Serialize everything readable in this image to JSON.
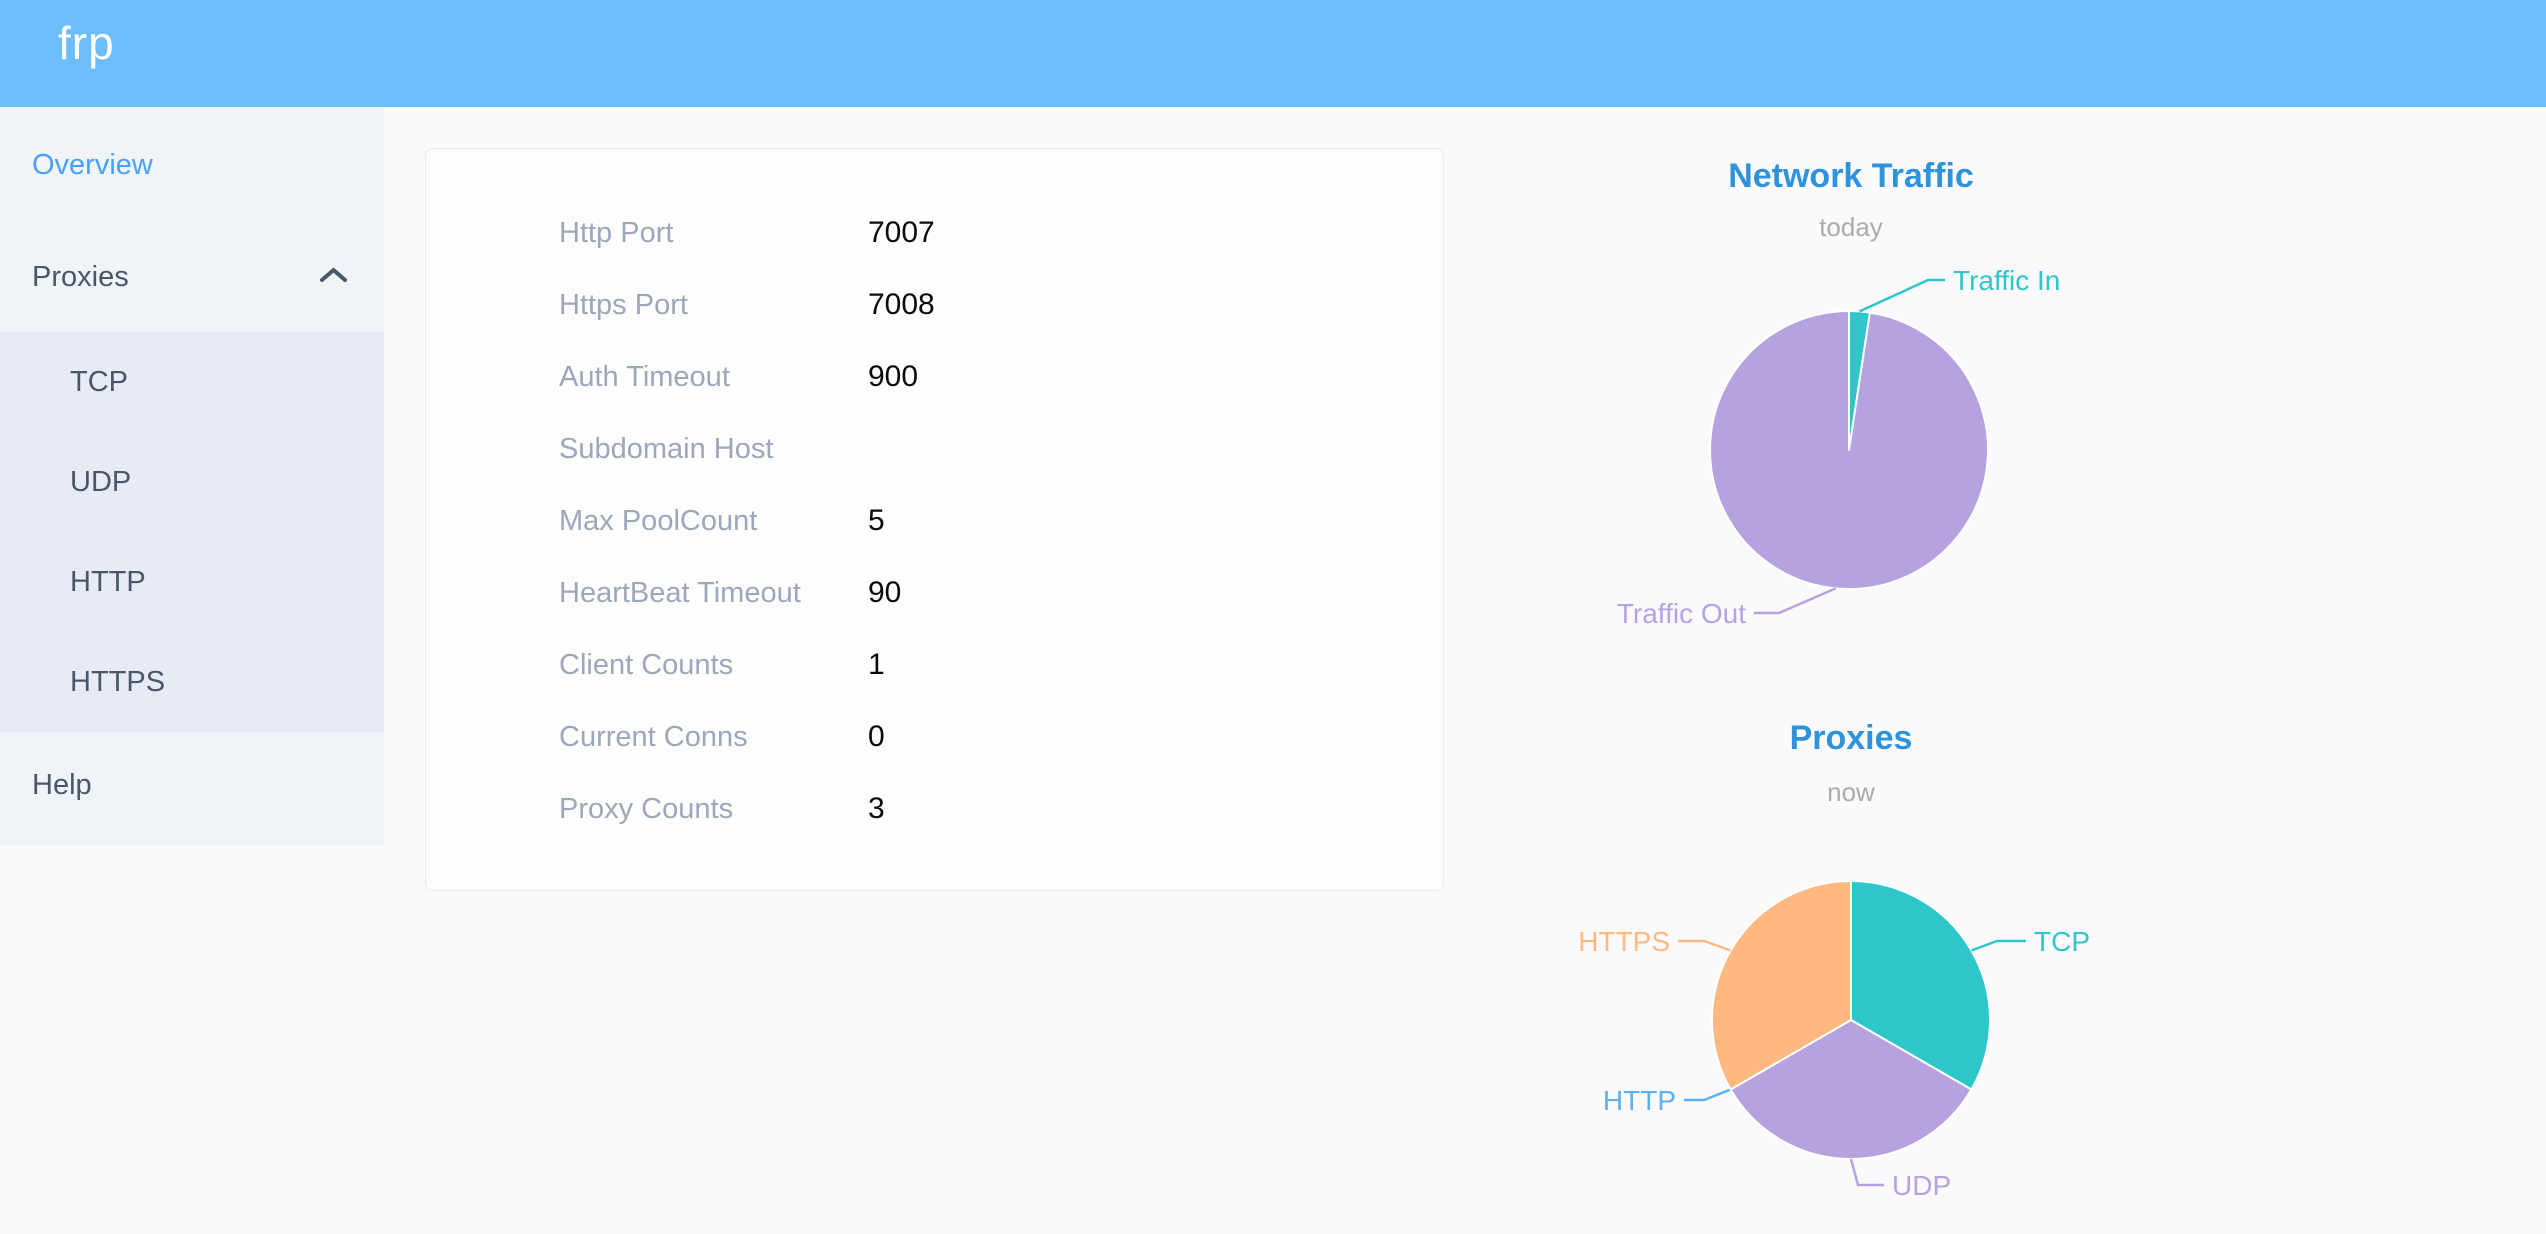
{
  "header": {
    "logo_text": "frp",
    "bg_color": "#6dbdfd"
  },
  "sidebar": {
    "overview_label": "Overview",
    "proxies_label": "Proxies",
    "help_label": "Help",
    "submenu": [
      "TCP",
      "UDP",
      "HTTP",
      "HTTPS"
    ],
    "active_item": "Overview",
    "active_color": "#4aa1f8",
    "text_color": "#48576a",
    "proxies_expanded": true
  },
  "server_info": {
    "rows": [
      {
        "label": "Http Port",
        "value": "7007"
      },
      {
        "label": "Https Port",
        "value": "7008"
      },
      {
        "label": "Auth Timeout",
        "value": "900"
      },
      {
        "label": "Subdomain Host",
        "value": ""
      },
      {
        "label": "Max PoolCount",
        "value": "5"
      },
      {
        "label": "HeartBeat Timeout",
        "value": "90"
      },
      {
        "label": "Client Counts",
        "value": "1"
      },
      {
        "label": "Current Conns",
        "value": "0"
      },
      {
        "label": "Proxy Counts",
        "value": "3"
      }
    ]
  },
  "chart_data": [
    {
      "type": "pie",
      "title": "Network Traffic",
      "subtitle": "today",
      "title_color": "#2e93da",
      "values_are_percent_estimates": true,
      "legend_position": "outside-labels-with-leader-lines",
      "series": [
        {
          "name": "Traffic In",
          "value": 2.4,
          "color": "#2ec7c9"
        },
        {
          "name": "Traffic Out",
          "value": 97.6,
          "color": "#b6a2de"
        }
      ]
    },
    {
      "type": "pie",
      "title": "Proxies",
      "subtitle": "now",
      "title_color": "#2e93da",
      "legend_position": "outside-labels-with-leader-lines",
      "series": [
        {
          "name": "TCP",
          "value": 1,
          "color": "#2ec7c9"
        },
        {
          "name": "UDP",
          "value": 1,
          "color": "#b6a2de"
        },
        {
          "name": "HTTP",
          "value": 0,
          "color": "#5ab1ef"
        },
        {
          "name": "HTTPS",
          "value": 1,
          "color": "#ffb980"
        }
      ]
    }
  ]
}
